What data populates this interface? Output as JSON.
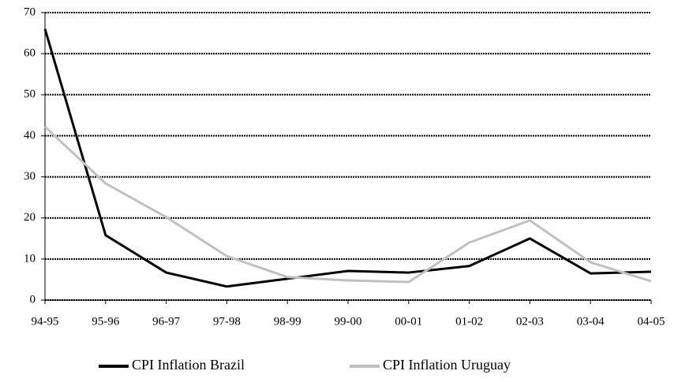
{
  "chart_data": {
    "type": "line",
    "categories": [
      "94-95",
      "95-96",
      "96-97",
      "97-98",
      "98-99",
      "99-00",
      "00-01",
      "01-02",
      "02-03",
      "03-04",
      "04-05"
    ],
    "series": [
      {
        "name": "CPI Inflation Brazil",
        "color": "#000000",
        "values": [
          66,
          15.8,
          6.7,
          3.3,
          5.2,
          7.1,
          6.7,
          8.3,
          15,
          6.5,
          6.9
        ]
      },
      {
        "name": "CPI Inflation Uruguay",
        "color": "#c0c0c0",
        "values": [
          42.2,
          28.4,
          20.2,
          10.7,
          5.6,
          4.8,
          4.4,
          14,
          19.4,
          9.2,
          4.6
        ]
      }
    ],
    "ylim": [
      0,
      70
    ],
    "yticks": [
      0,
      10,
      20,
      30,
      40,
      50,
      60,
      70
    ],
    "grid": true
  }
}
